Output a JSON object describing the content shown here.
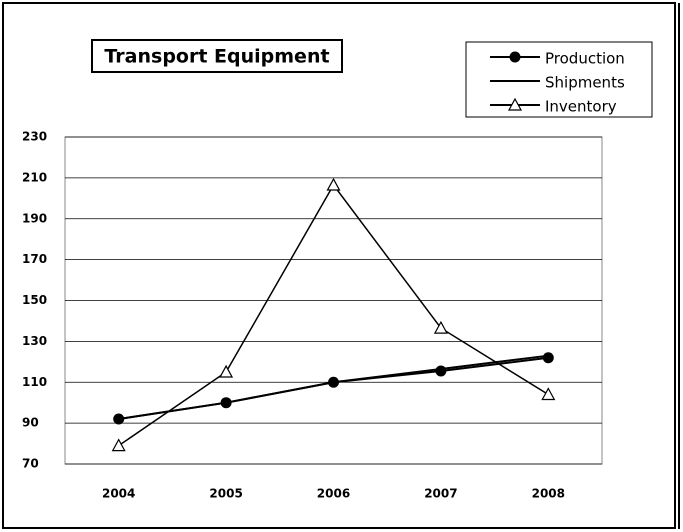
{
  "chart_data": {
    "type": "line",
    "title": "Transport Equipment",
    "categories": [
      "2004",
      "2005",
      "2006",
      "2007",
      "2008"
    ],
    "series": [
      {
        "name": "Production",
        "color": "#000000",
        "marker": "circle",
        "values": [
          92,
          100,
          110,
          115.5,
          122
        ]
      },
      {
        "name": "Shipments",
        "color": "#000000",
        "marker": "none",
        "values": [
          92,
          100,
          110,
          116.5,
          123
        ]
      },
      {
        "name": "Inventory",
        "color": "#000000",
        "marker": "triangle",
        "values": [
          79,
          115,
          206.5,
          136.5,
          104
        ]
      }
    ],
    "ylim": [
      70,
      230
    ],
    "yticks": [
      70,
      90,
      110,
      130,
      150,
      170,
      190,
      210,
      230
    ],
    "grid": true,
    "legend": "top-right"
  }
}
